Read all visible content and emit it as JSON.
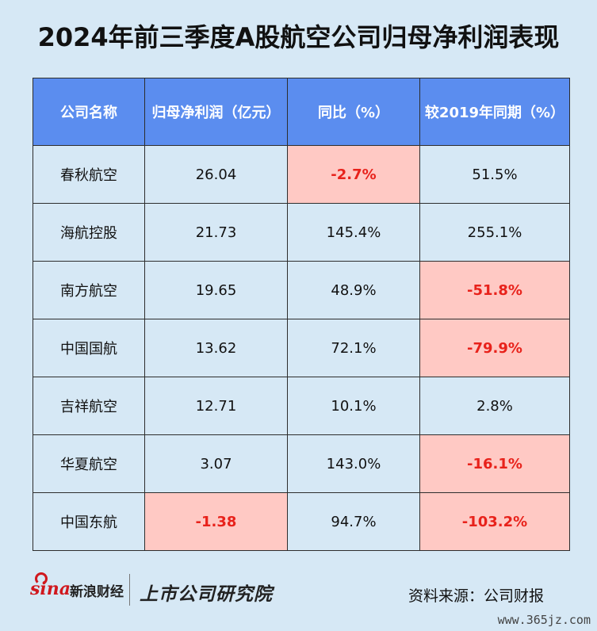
{
  "chart_data": {
    "type": "table",
    "title": "2024年前三季度A股航空公司归母净利润表现",
    "columns": [
      "公司名称",
      "归母净利润（亿元）",
      "同比（%）",
      "较2019年同期（%）"
    ],
    "rows": [
      {
        "company": "春秋航空",
        "net_profit": "26.04",
        "yoy": "-2.7%",
        "vs2019": "51.5%"
      },
      {
        "company": "海航控股",
        "net_profit": "21.73",
        "yoy": "145.4%",
        "vs2019": "255.1%"
      },
      {
        "company": "南方航空",
        "net_profit": "19.65",
        "yoy": "48.9%",
        "vs2019": "-51.8%"
      },
      {
        "company": "中国国航",
        "net_profit": "13.62",
        "yoy": "72.1%",
        "vs2019": "-79.9%"
      },
      {
        "company": "吉祥航空",
        "net_profit": "12.71",
        "yoy": "10.1%",
        "vs2019": "2.8%"
      },
      {
        "company": "华夏航空",
        "net_profit": "3.07",
        "yoy": "143.0%",
        "vs2019": "-16.1%"
      },
      {
        "company": "中国东航",
        "net_profit": "-1.38",
        "yoy": "94.7%",
        "vs2019": "-103.2%"
      }
    ]
  },
  "footer": {
    "sina_logo_text": "sina",
    "sina_brand": "新浪财经",
    "pcr_brand": "上市公司研究院",
    "source": "资料来源：公司财报"
  },
  "watermark": "www.365jz.com",
  "colors": {
    "header_bg": "#5b8def",
    "cell_bg": "#d6e8f5",
    "negative_bg": "#ffc9c4",
    "negative_text": "#e8221b"
  }
}
